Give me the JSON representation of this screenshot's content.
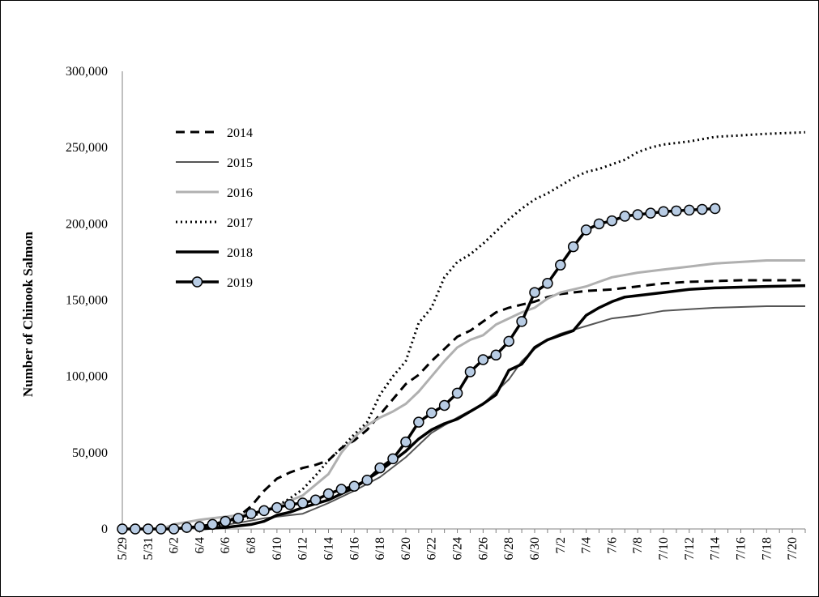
{
  "chart_data": {
    "type": "line",
    "ylabel": "Number of Chinook Salmon",
    "xlabel": "",
    "ylim": [
      0,
      300000
    ],
    "y_ticks": [
      0,
      50000,
      100000,
      150000,
      200000,
      250000,
      300000
    ],
    "y_tick_labels": [
      "0",
      "50,000",
      "100,000",
      "150,000",
      "200,000",
      "250,000",
      "300,000"
    ],
    "x_tick_labels": [
      "5/29",
      "5/31",
      "6/2",
      "6/4",
      "6/6",
      "6/8",
      "6/10",
      "6/12",
      "6/14",
      "6/16",
      "6/18",
      "6/20",
      "6/22",
      "6/24",
      "6/26",
      "6/28",
      "6/30",
      "7/2",
      "7/4",
      "7/6",
      "7/8",
      "7/10",
      "7/12",
      "7/14",
      "7/16",
      "7/18",
      "7/20"
    ],
    "x_start": "5/29",
    "x_end": "7/21",
    "legend_position": "upper-left",
    "series": [
      {
        "name": "2014",
        "style": "dashed",
        "color": "#000000",
        "points": [
          [
            "6/2",
            0
          ],
          [
            "6/5",
            2000
          ],
          [
            "6/7",
            8000
          ],
          [
            "6/8",
            15000
          ],
          [
            "6/9",
            25000
          ],
          [
            "6/10",
            33000
          ],
          [
            "6/11",
            37000
          ],
          [
            "6/12",
            40000
          ],
          [
            "6/13",
            42000
          ],
          [
            "6/14",
            45000
          ],
          [
            "6/15",
            53000
          ],
          [
            "6/16",
            58000
          ],
          [
            "6/17",
            65000
          ],
          [
            "6/18",
            75000
          ],
          [
            "6/19",
            85000
          ],
          [
            "6/20",
            95000
          ],
          [
            "6/21",
            101000
          ],
          [
            "6/22",
            110000
          ],
          [
            "6/23",
            118000
          ],
          [
            "6/24",
            126000
          ],
          [
            "6/25",
            130000
          ],
          [
            "6/26",
            136000
          ],
          [
            "6/27",
            142000
          ],
          [
            "6/28",
            145000
          ],
          [
            "6/29",
            147000
          ],
          [
            "6/30",
            149000
          ],
          [
            "7/1",
            152000
          ],
          [
            "7/2",
            154000
          ],
          [
            "7/4",
            156000
          ],
          [
            "7/6",
            157000
          ],
          [
            "7/8",
            159000
          ],
          [
            "7/10",
            161000
          ],
          [
            "7/12",
            162000
          ],
          [
            "7/14",
            162500
          ],
          [
            "7/16",
            163000
          ],
          [
            "7/18",
            163000
          ],
          [
            "7/21",
            163000
          ]
        ]
      },
      {
        "name": "2015",
        "style": "solid-thin",
        "color": "#555555",
        "points": [
          [
            "5/29",
            0
          ],
          [
            "6/2",
            0
          ],
          [
            "6/5",
            1500
          ],
          [
            "6/7",
            4000
          ],
          [
            "6/9",
            7000
          ],
          [
            "6/11",
            9000
          ],
          [
            "6/12",
            10000
          ],
          [
            "6/14",
            17000
          ],
          [
            "6/16",
            25000
          ],
          [
            "6/18",
            34000
          ],
          [
            "6/20",
            47000
          ],
          [
            "6/22",
            63000
          ],
          [
            "6/24",
            73000
          ],
          [
            "6/26",
            82000
          ],
          [
            "6/28",
            98000
          ],
          [
            "6/29",
            110000
          ],
          [
            "6/30",
            118000
          ],
          [
            "7/1",
            124000
          ],
          [
            "7/2",
            128000
          ],
          [
            "7/4",
            133000
          ],
          [
            "7/6",
            138000
          ],
          [
            "7/8",
            140000
          ],
          [
            "7/10",
            143000
          ],
          [
            "7/12",
            144000
          ],
          [
            "7/14",
            145000
          ],
          [
            "7/16",
            145500
          ],
          [
            "7/18",
            146000
          ],
          [
            "7/21",
            146000
          ]
        ]
      },
      {
        "name": "2016",
        "style": "solid-light",
        "color": "#b0b0b0",
        "points": [
          [
            "6/1",
            0
          ],
          [
            "6/2",
            3000
          ],
          [
            "6/4",
            6000
          ],
          [
            "6/6",
            8000
          ],
          [
            "6/8",
            10000
          ],
          [
            "6/10",
            15000
          ],
          [
            "6/12",
            22000
          ],
          [
            "6/14",
            36000
          ],
          [
            "6/15",
            50000
          ],
          [
            "6/16",
            60000
          ],
          [
            "6/17",
            68000
          ],
          [
            "6/18",
            73000
          ],
          [
            "6/19",
            77000
          ],
          [
            "6/20",
            82000
          ],
          [
            "6/21",
            90000
          ],
          [
            "6/22",
            100000
          ],
          [
            "6/23",
            110000
          ],
          [
            "6/24",
            119000
          ],
          [
            "6/25",
            124000
          ],
          [
            "6/26",
            127000
          ],
          [
            "6/27",
            134000
          ],
          [
            "6/28",
            138000
          ],
          [
            "6/29",
            142000
          ],
          [
            "6/30",
            145000
          ],
          [
            "7/1",
            151000
          ],
          [
            "7/2",
            155000
          ],
          [
            "7/4",
            159000
          ],
          [
            "7/5",
            162000
          ],
          [
            "7/6",
            165000
          ],
          [
            "7/8",
            168000
          ],
          [
            "7/10",
            170000
          ],
          [
            "7/12",
            172000
          ],
          [
            "7/14",
            174000
          ],
          [
            "7/16",
            175000
          ],
          [
            "7/18",
            176000
          ],
          [
            "7/21",
            176000
          ]
        ]
      },
      {
        "name": "2017",
        "style": "dotted",
        "color": "#000000",
        "points": [
          [
            "6/4",
            0
          ],
          [
            "6/6",
            3000
          ],
          [
            "6/8",
            8000
          ],
          [
            "6/10",
            15000
          ],
          [
            "6/11",
            20000
          ],
          [
            "6/12",
            26000
          ],
          [
            "6/13",
            35000
          ],
          [
            "6/14",
            45000
          ],
          [
            "6/15",
            53000
          ],
          [
            "6/16",
            62000
          ],
          [
            "6/17",
            70000
          ],
          [
            "6/18",
            88000
          ],
          [
            "6/19",
            100000
          ],
          [
            "6/20",
            110000
          ],
          [
            "6/21",
            135000
          ],
          [
            "6/22",
            145000
          ],
          [
            "6/23",
            165000
          ],
          [
            "6/24",
            175000
          ],
          [
            "6/25",
            180000
          ],
          [
            "6/26",
            187000
          ],
          [
            "6/27",
            195000
          ],
          [
            "6/28",
            203000
          ],
          [
            "6/29",
            210000
          ],
          [
            "6/30",
            216000
          ],
          [
            "7/1",
            220000
          ],
          [
            "7/2",
            225000
          ],
          [
            "7/3",
            230000
          ],
          [
            "7/4",
            234000
          ],
          [
            "7/5",
            236000
          ],
          [
            "7/6",
            239000
          ],
          [
            "7/7",
            242000
          ],
          [
            "7/8",
            247000
          ],
          [
            "7/9",
            250000
          ],
          [
            "7/10",
            252000
          ],
          [
            "7/12",
            254000
          ],
          [
            "7/14",
            257000
          ],
          [
            "7/16",
            258000
          ],
          [
            "7/18",
            259000
          ],
          [
            "7/21",
            260000
          ]
        ]
      },
      {
        "name": "2018",
        "style": "solid-thick",
        "color": "#000000",
        "points": [
          [
            "6/4",
            0
          ],
          [
            "6/6",
            1000
          ],
          [
            "6/8",
            3000
          ],
          [
            "6/9",
            5000
          ],
          [
            "6/10",
            9000
          ],
          [
            "6/11",
            11000
          ],
          [
            "6/12",
            14000
          ],
          [
            "6/14",
            19000
          ],
          [
            "6/16",
            27000
          ],
          [
            "6/18",
            38000
          ],
          [
            "6/20",
            51000
          ],
          [
            "6/21",
            59000
          ],
          [
            "6/22",
            65000
          ],
          [
            "6/23",
            69000
          ],
          [
            "6/24",
            72000
          ],
          [
            "6/25",
            77000
          ],
          [
            "6/26",
            82000
          ],
          [
            "6/27",
            88000
          ],
          [
            "6/28",
            104000
          ],
          [
            "6/29",
            108000
          ],
          [
            "6/30",
            119000
          ],
          [
            "7/1",
            124000
          ],
          [
            "7/2",
            127000
          ],
          [
            "7/3",
            130000
          ],
          [
            "7/4",
            140000
          ],
          [
            "7/5",
            145000
          ],
          [
            "7/6",
            149000
          ],
          [
            "7/7",
            152000
          ],
          [
            "7/8",
            153000
          ],
          [
            "7/10",
            155000
          ],
          [
            "7/12",
            157000
          ],
          [
            "7/14",
            158000
          ],
          [
            "7/16",
            158500
          ],
          [
            "7/18",
            159000
          ],
          [
            "7/21",
            159500
          ]
        ]
      },
      {
        "name": "2019",
        "style": "solid-thick-markers",
        "color": "#000000",
        "marker_color": "#b8cce4",
        "points": [
          [
            "5/29",
            0
          ],
          [
            "5/30",
            0
          ],
          [
            "5/31",
            0
          ],
          [
            "6/1",
            0
          ],
          [
            "6/2",
            0
          ],
          [
            "6/3",
            1000
          ],
          [
            "6/4",
            1500
          ],
          [
            "6/5",
            3000
          ],
          [
            "6/6",
            5000
          ],
          [
            "6/7",
            7000
          ],
          [
            "6/8",
            10000
          ],
          [
            "6/9",
            12000
          ],
          [
            "6/10",
            14000
          ],
          [
            "6/11",
            16000
          ],
          [
            "6/12",
            17000
          ],
          [
            "6/13",
            19000
          ],
          [
            "6/14",
            23000
          ],
          [
            "6/15",
            26000
          ],
          [
            "6/16",
            28000
          ],
          [
            "6/17",
            32000
          ],
          [
            "6/18",
            40000
          ],
          [
            "6/19",
            46000
          ],
          [
            "6/20",
            57000
          ],
          [
            "6/21",
            70000
          ],
          [
            "6/22",
            76000
          ],
          [
            "6/23",
            81000
          ],
          [
            "6/24",
            89000
          ],
          [
            "6/25",
            103000
          ],
          [
            "6/26",
            111000
          ],
          [
            "6/27",
            114000
          ],
          [
            "6/28",
            123000
          ],
          [
            "6/29",
            136000
          ],
          [
            "6/30",
            155000
          ],
          [
            "7/1",
            161000
          ],
          [
            "7/2",
            173000
          ],
          [
            "7/3",
            185000
          ],
          [
            "7/4",
            196000
          ],
          [
            "7/5",
            200000
          ],
          [
            "7/6",
            202000
          ],
          [
            "7/7",
            205000
          ],
          [
            "7/8",
            206000
          ],
          [
            "7/9",
            207000
          ],
          [
            "7/10",
            208000
          ],
          [
            "7/11",
            208500
          ],
          [
            "7/12",
            209000
          ],
          [
            "7/13",
            209500
          ],
          [
            "7/14",
            210000
          ]
        ]
      }
    ]
  }
}
